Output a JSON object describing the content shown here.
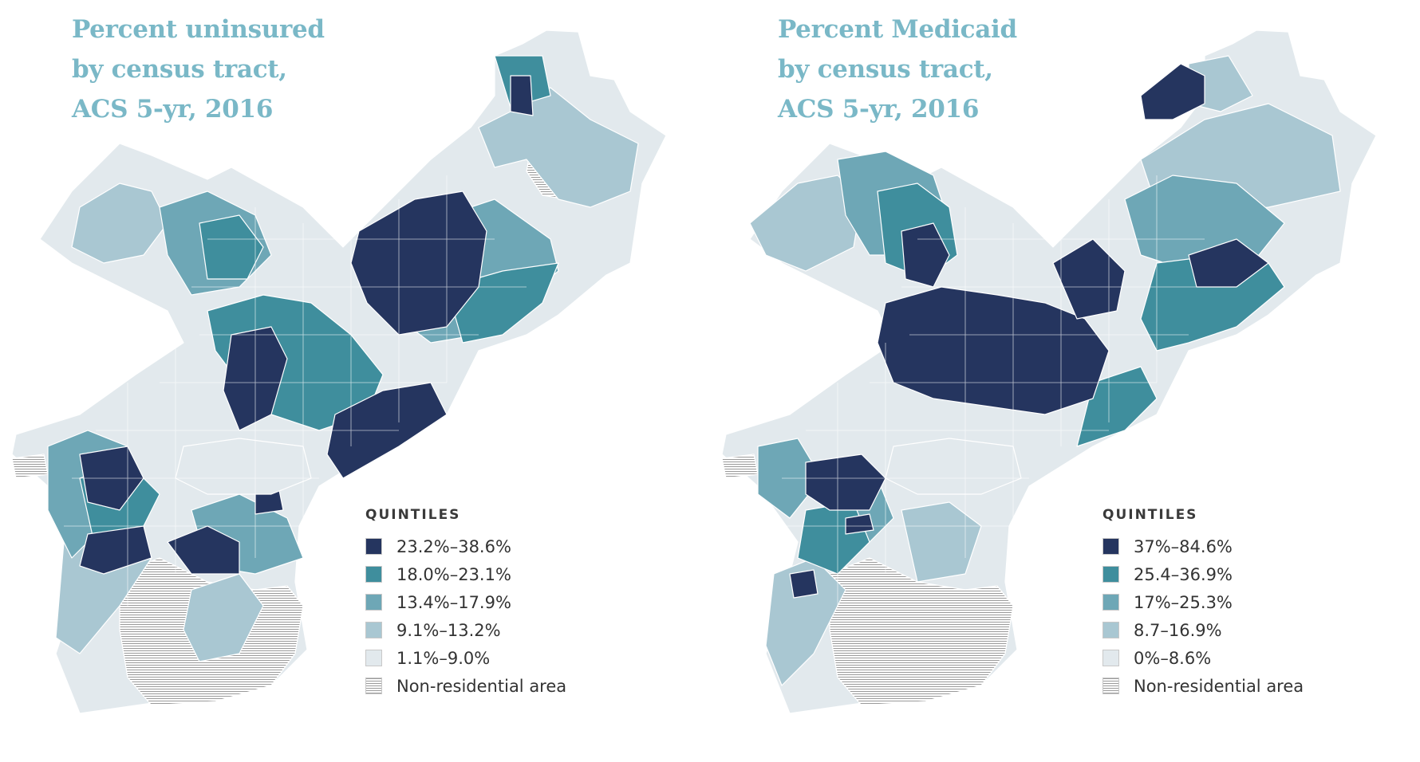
{
  "colors": {
    "q1": "#25355f",
    "q2": "#3f8e9d",
    "q3": "#6ea7b6",
    "q4": "#a9c7d2",
    "q5": "#e2e9ed",
    "hatch": "#9a9a9a",
    "title": "#7ab8c7"
  },
  "maps": [
    {
      "title_lines": [
        "Percent uninsured",
        "by census tract,",
        "ACS 5-yr, 2016"
      ],
      "legend_heading": "QUINTILES",
      "legend_items": [
        {
          "label": "23.2%–38.6%",
          "class": "q1"
        },
        {
          "label": "18.0%–23.1%",
          "class": "q2"
        },
        {
          "label": "13.4%–17.9%",
          "class": "q3"
        },
        {
          "label": "9.1%–13.2%",
          "class": "q4"
        },
        {
          "label": "1.1%–9.0%",
          "class": "q5"
        },
        {
          "label": "Non-residential area",
          "class": "hatch"
        }
      ]
    },
    {
      "title_lines": [
        "Percent Medicaid",
        "by census tract,",
        "ACS 5-yr, 2016"
      ],
      "legend_heading": "QUINTILES",
      "legend_items": [
        {
          "label": "37%–84.6%",
          "class": "q1"
        },
        {
          "label": "25.4–36.9%",
          "class": "q2"
        },
        {
          "label": "17%–25.3%",
          "class": "q3"
        },
        {
          "label": "8.7–16.9%",
          "class": "q4"
        },
        {
          "label": "0%–8.6%",
          "class": "q5"
        },
        {
          "label": "Non-residential area",
          "class": "hatch"
        }
      ]
    }
  ]
}
